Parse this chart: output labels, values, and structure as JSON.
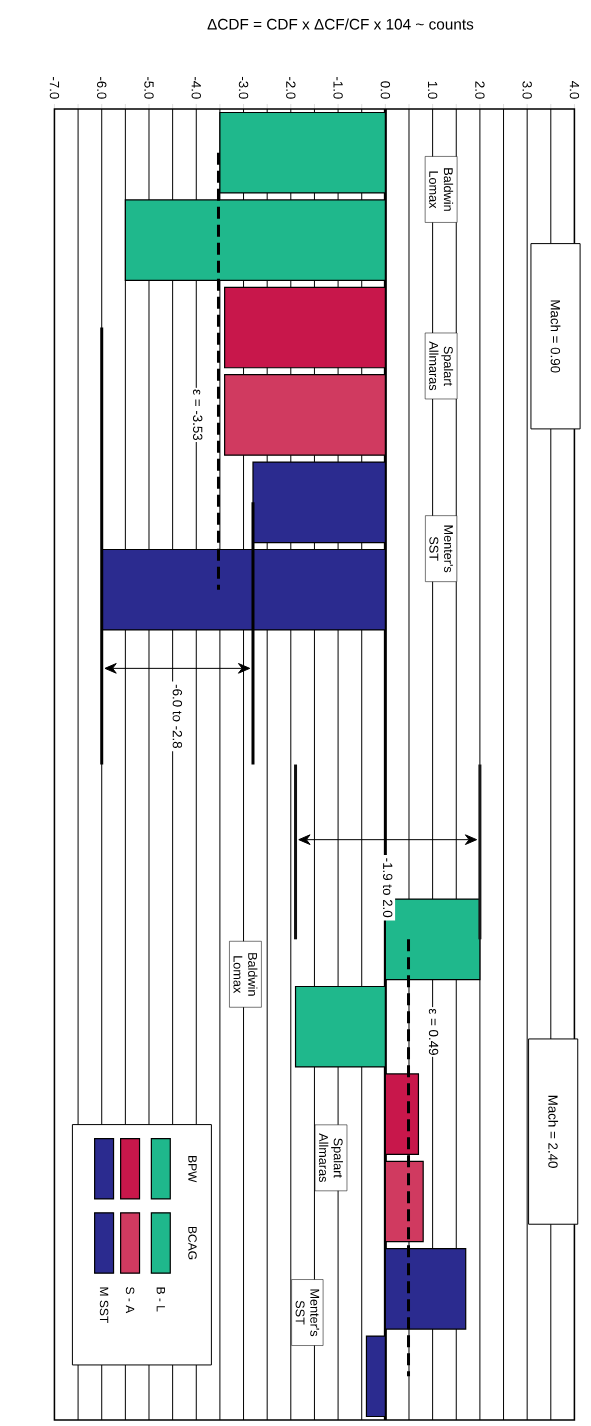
{
  "chart_data": {
    "type": "bar",
    "orientation": "horizontal",
    "xlabel": "ΔCDF = CDF x ΔCF/CF x 104 ~ counts",
    "categories": [
      null,
      null,
      null,
      null,
      null,
      null,
      null,
      null,
      null,
      null,
      null,
      null,
      null,
      null,
      null
    ],
    "series": [
      {
        "color": "#1fb88c",
        "values": [
          -3.5,
          null,
          null,
          null,
          null,
          null,
          null,
          null,
          null,
          2.0,
          null,
          null,
          null,
          null,
          null
        ]
      },
      {
        "color": "#1fb88c",
        "values": [
          null,
          -5.5,
          null,
          null,
          null,
          null,
          null,
          null,
          null,
          null,
          -1.9,
          null,
          null,
          null,
          null
        ]
      },
      {
        "color": "#c8174b",
        "values": [
          null,
          null,
          -3.4,
          null,
          null,
          null,
          null,
          null,
          null,
          null,
          null,
          0.7,
          null,
          null,
          null
        ]
      },
      {
        "color": "#d03a60",
        "values": [
          null,
          null,
          null,
          -3.4,
          null,
          null,
          null,
          null,
          null,
          null,
          null,
          null,
          0.8,
          null,
          null
        ]
      },
      {
        "color": "#2b2b8f",
        "values": [
          null,
          null,
          null,
          null,
          -2.8,
          null,
          null,
          null,
          null,
          null,
          null,
          null,
          null,
          1.7,
          null
        ]
      },
      {
        "color": "#2b2b8f",
        "values": [
          null,
          null,
          null,
          null,
          null,
          -6.0,
          null,
          null,
          null,
          null,
          null,
          null,
          null,
          null,
          -0.4
        ]
      },
      {
        "type": "line",
        "line_style": "dashed",
        "color": "#000000",
        "values": [
          -3.53,
          -3.53,
          -3.53,
          -3.53,
          -3.53,
          -3.53,
          null,
          null,
          null,
          null,
          null,
          null,
          null,
          null,
          null
        ]
      },
      {
        "type": "line",
        "line_style": "dashed",
        "color": "#000000",
        "values": [
          null,
          null,
          null,
          null,
          null,
          null,
          null,
          null,
          null,
          0.49,
          0.49,
          0.49,
          0.49,
          0.49,
          0.49
        ]
      },
      {
        "type": "line",
        "line_style": "solid",
        "color": "#000000",
        "values": [
          null,
          null,
          -6.0,
          -6.0,
          -6.0,
          -6.0,
          -6.0,
          -6.0,
          null,
          null,
          null,
          null,
          null,
          null,
          null
        ]
      },
      {
        "type": "line",
        "line_style": "solid",
        "color": "#000000",
        "values": [
          null,
          null,
          null,
          null,
          -2.8,
          -2.8,
          -2.8,
          -2.8,
          null,
          null,
          null,
          null,
          null,
          null,
          null
        ]
      },
      {
        "type": "line",
        "line_style": "solid",
        "color": "#101010",
        "values": [
          null,
          null,
          null,
          null,
          null,
          null,
          null,
          -1.9,
          -1.9,
          -1.9,
          null,
          null,
          null,
          null,
          null
        ]
      },
      {
        "type": "line",
        "line_style": "solid",
        "color": "#181818",
        "values": [
          null,
          null,
          null,
          null,
          null,
          null,
          null,
          2.0,
          2.0,
          2.0,
          null,
          null,
          null,
          null,
          null
        ]
      }
    ],
    "xlim": [
      -7,
      4
    ],
    "xticks": [
      {
        "value": -7,
        "label": "-7.0"
      },
      {
        "value": -6.5,
        "label": null
      },
      {
        "value": -6,
        "label": "-6.0"
      },
      {
        "value": -5.5,
        "label": null
      },
      {
        "value": -5,
        "label": "-5.0"
      },
      {
        "value": -4.5,
        "label": null
      },
      {
        "value": -4,
        "label": "-4.0"
      },
      {
        "value": -3.5,
        "label": null
      },
      {
        "value": -3,
        "label": "-3.0"
      },
      {
        "value": -2.5,
        "label": null
      },
      {
        "value": -2,
        "label": "-2.0"
      },
      {
        "value": -1.5,
        "label": null
      },
      {
        "value": -1,
        "label": "-1.0"
      },
      {
        "value": -0.5,
        "label": null
      },
      {
        "value": 0,
        "label": "0.0"
      },
      {
        "value": 0.5,
        "label": null
      },
      {
        "value": 1,
        "label": "1.0"
      },
      {
        "value": 1.5,
        "label": null
      },
      {
        "value": 2,
        "label": "2.0"
      },
      {
        "value": 2.5,
        "label": null
      },
      {
        "value": 3,
        "label": "3.0"
      },
      {
        "value": 3.5,
        "label": null
      },
      {
        "value": 4,
        "label": "4.0"
      }
    ],
    "grid": "x",
    "ref_lines": [
      {
        "axis": "x",
        "value": 0,
        "color": "#000000"
      }
    ],
    "annotations": [
      "Mach = 0.90",
      "Mach = 2.40",
      "Baldwin Lomax",
      "Spalart Allmaras",
      "Menter's SST",
      "Baldwin Lomax",
      "Spalart Allmaras",
      "Menter's SST",
      {
        "text": "ε = -3.53",
        "x": -3.53
      },
      {
        "text": "ε = 0.49",
        "x": 0.49
      },
      "-6.0 to -2.8",
      "-1.9 to 2.0",
      "BPW",
      "BCAG",
      "B - L",
      "S - A",
      "M SST"
    ]
  }
}
